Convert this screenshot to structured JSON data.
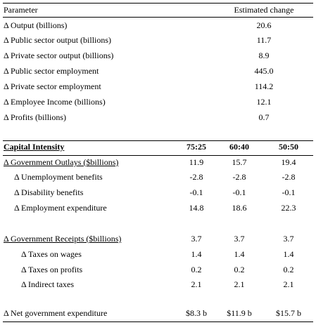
{
  "table1": {
    "header": [
      "Parameter",
      "Estimated change"
    ],
    "rows": [
      [
        "Δ Output (billions)",
        "20.6"
      ],
      [
        "Δ Public sector output (billions)",
        "11.7"
      ],
      [
        "Δ Private sector output (billions)",
        "8.9"
      ],
      [
        "Δ Public sector employment",
        "445.0"
      ],
      [
        "Δ Private sector employment",
        "114.2"
      ],
      [
        "Δ Employee Income (billions)",
        "12.1"
      ],
      [
        "Δ Profits (billions)",
        "0.7"
      ]
    ]
  },
  "table2": {
    "header": [
      "Capital Intensity",
      "75:25",
      "60:40",
      "50:50"
    ],
    "rows": [
      [
        "Δ Government Outlays ($billions)",
        "11.9",
        "15.7",
        "19.4"
      ],
      [
        "Δ Unemployment benefits",
        "-2.8",
        "-2.8",
        "-2.8"
      ],
      [
        "Δ Disability benefits",
        "-0.1",
        "-0.1",
        "-0.1"
      ],
      [
        "Δ Employment expenditure",
        "14.8",
        "18.6",
        "22.3"
      ],
      [
        "Δ Government Receipts ($billions)",
        "3.7",
        "3.7",
        "3.7"
      ],
      [
        "Δ Taxes on wages",
        "1.4",
        "1.4",
        "1.4"
      ],
      [
        "Δ Taxes on profits",
        "0.2",
        "0.2",
        "0.2"
      ],
      [
        "Δ Indirect taxes",
        "2.1",
        "2.1",
        "2.1"
      ],
      [
        "Δ Net government expenditure",
        "$8.3 b",
        "$11.9 b",
        "$15.7 b"
      ]
    ]
  }
}
